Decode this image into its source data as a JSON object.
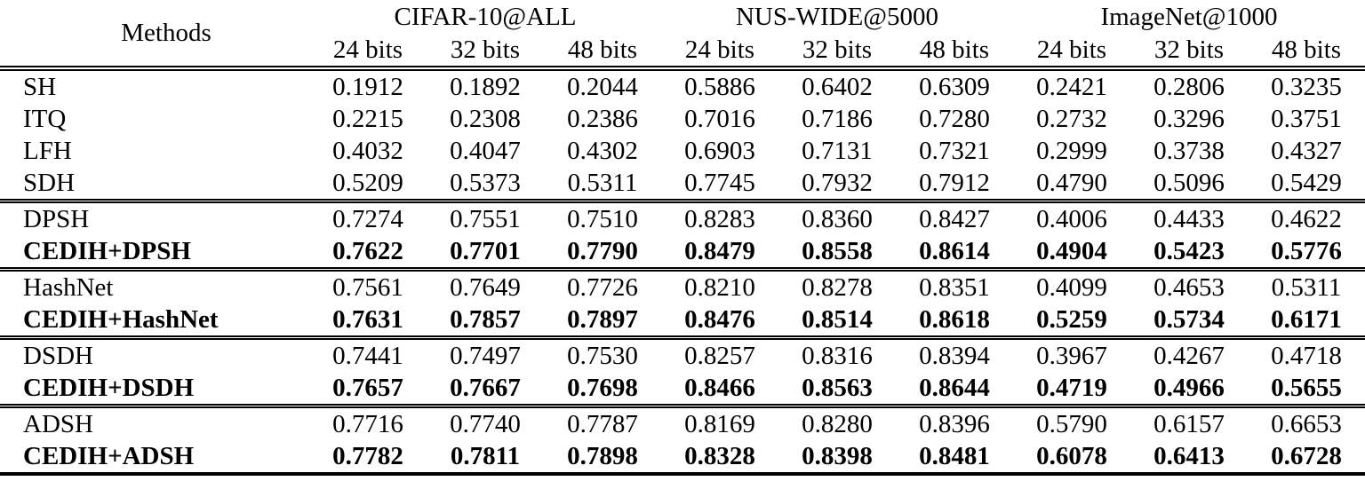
{
  "table": {
    "methods_header": "Methods",
    "groups": [
      {
        "label": "CIFAR-10@ALL",
        "subcols": [
          "24 bits",
          "32 bits",
          "48 bits"
        ]
      },
      {
        "label": "NUS-WIDE@5000",
        "subcols": [
          "24 bits",
          "32 bits",
          "48 bits"
        ]
      },
      {
        "label": "ImageNet@1000",
        "subcols": [
          "24 bits",
          "32 bits",
          "48 bits"
        ]
      }
    ],
    "row_groups": [
      {
        "rows": [
          {
            "method": "SH",
            "bold": false,
            "values": [
              "0.1912",
              "0.1892",
              "0.2044",
              "0.5886",
              "0.6402",
              "0.6309",
              "0.2421",
              "0.2806",
              "0.3235"
            ]
          },
          {
            "method": "ITQ",
            "bold": false,
            "values": [
              "0.2215",
              "0.2308",
              "0.2386",
              "0.7016",
              "0.7186",
              "0.7280",
              "0.2732",
              "0.3296",
              "0.3751"
            ]
          },
          {
            "method": "LFH",
            "bold": false,
            "values": [
              "0.4032",
              "0.4047",
              "0.4302",
              "0.6903",
              "0.7131",
              "0.7321",
              "0.2999",
              "0.3738",
              "0.4327"
            ]
          },
          {
            "method": "SDH",
            "bold": false,
            "values": [
              "0.5209",
              "0.5373",
              "0.5311",
              "0.7745",
              "0.7932",
              "0.7912",
              "0.4790",
              "0.5096",
              "0.5429"
            ]
          }
        ]
      },
      {
        "rows": [
          {
            "method": "DPSH",
            "bold": false,
            "values": [
              "0.7274",
              "0.7551",
              "0.7510",
              "0.8283",
              "0.8360",
              "0.8427",
              "0.4006",
              "0.4433",
              "0.4622"
            ]
          },
          {
            "method": "CEDIH+DPSH",
            "bold": true,
            "values": [
              "0.7622",
              "0.7701",
              "0.7790",
              "0.8479",
              "0.8558",
              "0.8614",
              "0.4904",
              "0.5423",
              "0.5776"
            ]
          }
        ]
      },
      {
        "rows": [
          {
            "method": "HashNet",
            "bold": false,
            "values": [
              "0.7561",
              "0.7649",
              "0.7726",
              "0.8210",
              "0.8278",
              "0.8351",
              "0.4099",
              "0.4653",
              "0.5311"
            ]
          },
          {
            "method": "CEDIH+HashNet",
            "bold": true,
            "values": [
              "0.7631",
              "0.7857",
              "0.7897",
              "0.8476",
              "0.8514",
              "0.8618",
              "0.5259",
              "0.5734",
              "0.6171"
            ]
          }
        ]
      },
      {
        "rows": [
          {
            "method": "DSDH",
            "bold": false,
            "values": [
              "0.7441",
              "0.7497",
              "0.7530",
              "0.8257",
              "0.8316",
              "0.8394",
              "0.3967",
              "0.4267",
              "0.4718"
            ]
          },
          {
            "method": "CEDIH+DSDH",
            "bold": true,
            "values": [
              "0.7657",
              "0.7667",
              "0.7698",
              "0.8466",
              "0.8563",
              "0.8644",
              "0.4719",
              "0.4966",
              "0.5655"
            ]
          }
        ]
      },
      {
        "rows": [
          {
            "method": "ADSH",
            "bold": false,
            "values": [
              "0.7716",
              "0.7740",
              "0.7787",
              "0.8169",
              "0.8280",
              "0.8396",
              "0.5790",
              "0.6157",
              "0.6653"
            ]
          },
          {
            "method": "CEDIH+ADSH",
            "bold": true,
            "values": [
              "0.7782",
              "0.7811",
              "0.7898",
              "0.8328",
              "0.8398",
              "0.8481",
              "0.6078",
              "0.6413",
              "0.6728"
            ]
          }
        ]
      }
    ]
  }
}
